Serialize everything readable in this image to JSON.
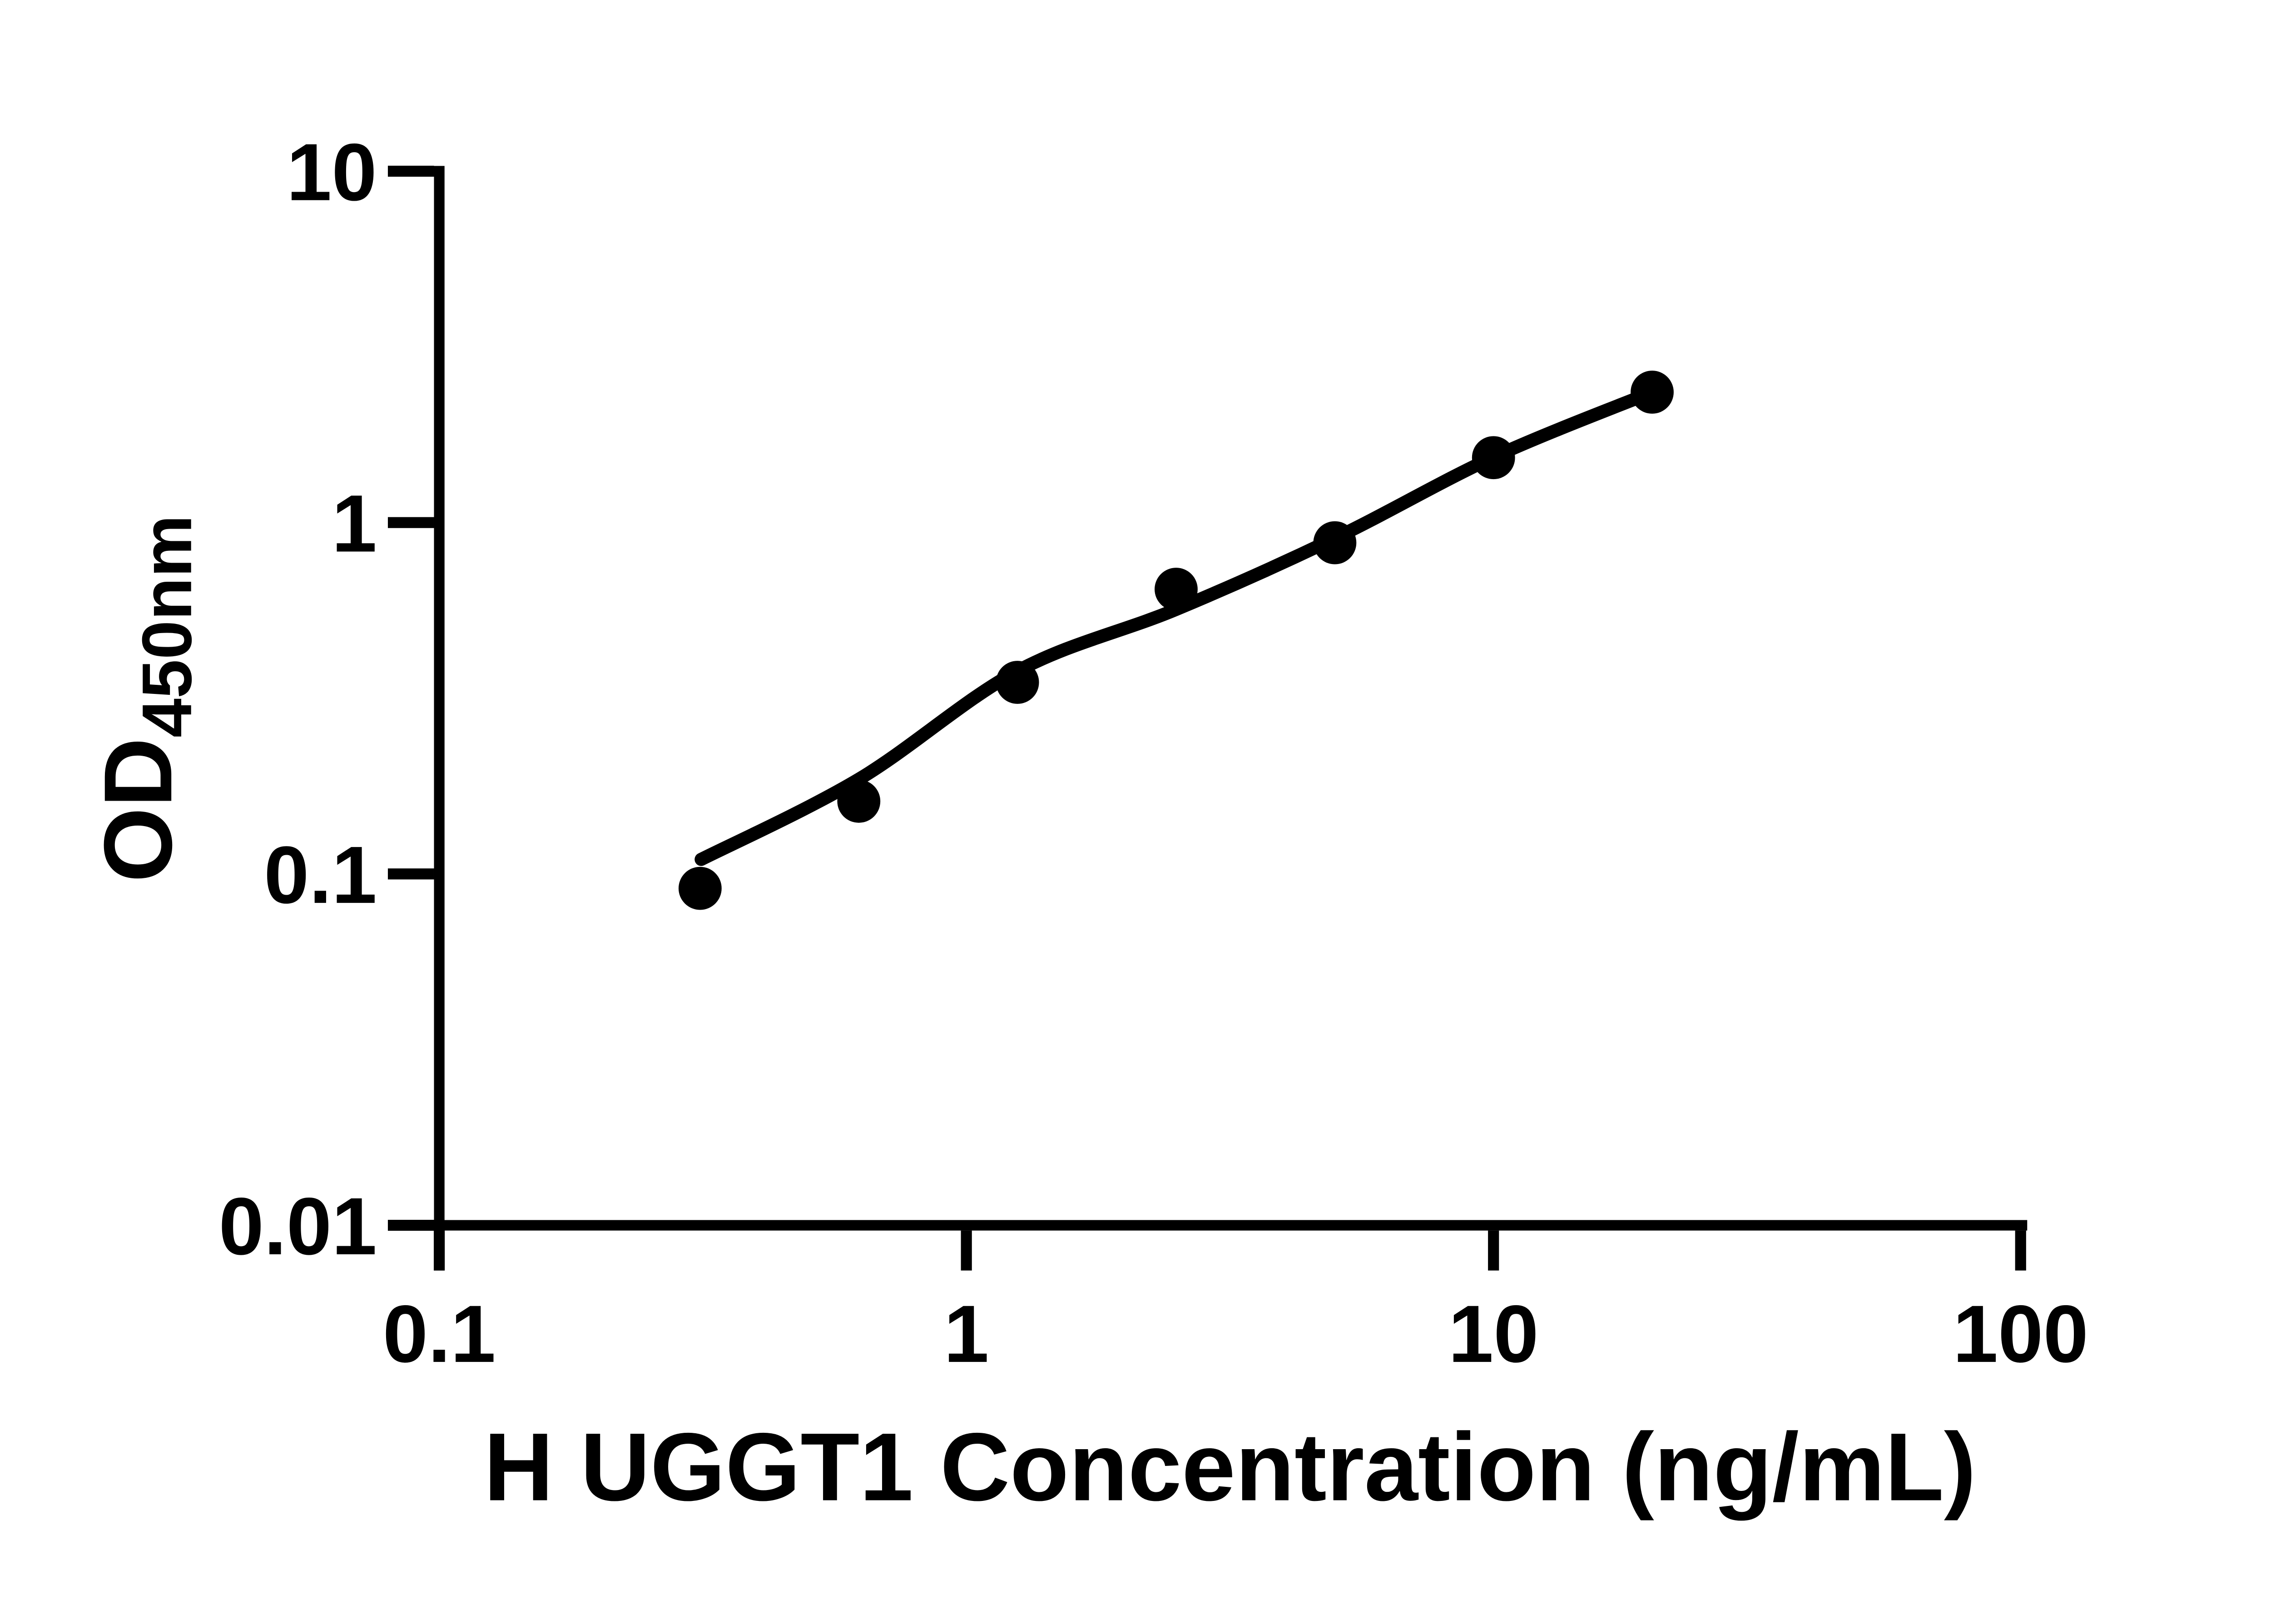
{
  "page": {
    "background": "#ffffff",
    "foreground": "#000000"
  },
  "chart_data": {
    "type": "scatter",
    "title": "",
    "xlabel": "H UGGT1 Concentration (ng/mL)",
    "ylabel_main": "OD",
    "ylabel_subscript": "450nm",
    "x_scale": "log",
    "y_scale": "log",
    "xlim": [
      0.1,
      100
    ],
    "ylim": [
      0.01,
      10
    ],
    "grid": false,
    "legend": "none",
    "axis_color": "#000000",
    "text_color": "#000000",
    "x_ticks": [
      {
        "value": 0.1,
        "label": "0.1"
      },
      {
        "value": 1,
        "label": "1"
      },
      {
        "value": 10,
        "label": "10"
      },
      {
        "value": 100,
        "label": "100"
      }
    ],
    "y_ticks": [
      {
        "value": 10,
        "label": "10"
      },
      {
        "value": 1,
        "label": "1"
      },
      {
        "value": 0.1,
        "label": "0.1"
      },
      {
        "value": 0.01,
        "label": "0.01"
      }
    ],
    "series": [
      {
        "name": "standard points",
        "kind": "scatter",
        "marker_shape": "circle",
        "marker_color": "#000000",
        "points": [
          {
            "x": 0.3125,
            "y": 0.091
          },
          {
            "x": 0.625,
            "y": 0.161
          },
          {
            "x": 1.25,
            "y": 0.351
          },
          {
            "x": 2.5,
            "y": 0.646
          },
          {
            "x": 5,
            "y": 0.876
          },
          {
            "x": 10,
            "y": 1.53
          },
          {
            "x": 20,
            "y": 2.35
          }
        ]
      },
      {
        "name": "fit curve",
        "kind": "line",
        "line_color": "#000000",
        "points": [
          {
            "x": 0.314,
            "y": 0.11
          },
          {
            "x": 0.625,
            "y": 0.186
          },
          {
            "x": 1.25,
            "y": 0.378
          },
          {
            "x": 2.5,
            "y": 0.566
          },
          {
            "x": 5,
            "y": 0.902
          },
          {
            "x": 10,
            "y": 1.535
          },
          {
            "x": 20,
            "y": 2.35
          }
        ]
      }
    ]
  }
}
